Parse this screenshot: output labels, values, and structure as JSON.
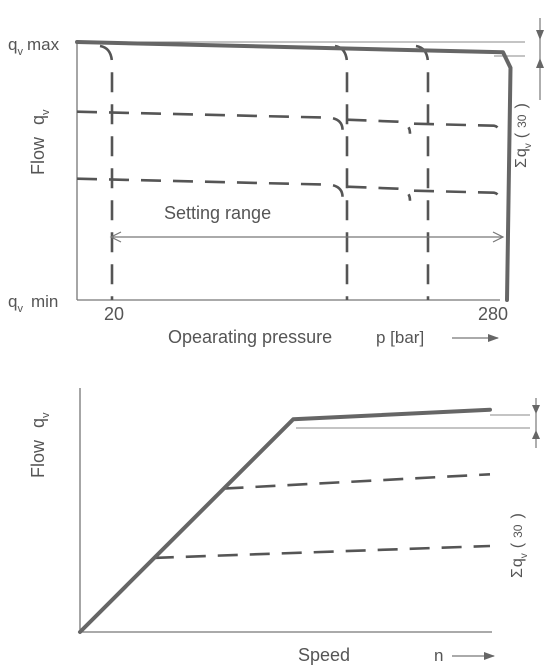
{
  "chart_data": [
    {
      "type": "line",
      "title": "",
      "xlabel": "Opearating pressure",
      "xunit": "p [bar]",
      "ylabel": "Flow",
      "ylabel_symbol": "q",
      "ylabel_symbol_sub": "v",
      "y_max_label": {
        "base": "q",
        "sub": "v",
        "text": "max"
      },
      "y_min_label": {
        "base": "q",
        "sub": "v",
        "text": "min"
      },
      "x_ticks": [
        "20",
        "280"
      ],
      "setting_range_label": "Setting range",
      "tolerance_label": {
        "sigma": "Σ",
        "base": "q",
        "sub": "v",
        "value": "30"
      },
      "xlim": [
        0,
        300
      ],
      "ylim": [
        0,
        1
      ],
      "main_series": {
        "x": [
          0,
          282,
          287,
          290
        ],
        "y": [
          1,
          0.96,
          0.9,
          0
        ]
      },
      "dashed_flow_levels": [
        0.73,
        0.47
      ],
      "dashed_cutoff_pressures": [
        20,
        175,
        220,
        285
      ]
    },
    {
      "type": "line",
      "title": "",
      "xlabel": "Speed",
      "xunit": "n",
      "ylabel": "Flow",
      "ylabel_symbol": "q",
      "ylabel_symbol_sub": "v",
      "tolerance_label": {
        "sigma": "Σ",
        "base": "q",
        "sub": "v",
        "value": "30"
      },
      "xlim": [
        0,
        1
      ],
      "ylim": [
        0,
        1
      ],
      "main_series": {
        "x": [
          0,
          0.52,
          1
        ],
        "y": [
          0,
          0.89,
          0.93
        ]
      },
      "dashed_series": [
        {
          "x": [
            0.35,
            1
          ],
          "y": [
            0.6,
            0.66
          ]
        },
        {
          "x": [
            0.18,
            1
          ],
          "y": [
            0.31,
            0.36
          ]
        }
      ]
    }
  ]
}
